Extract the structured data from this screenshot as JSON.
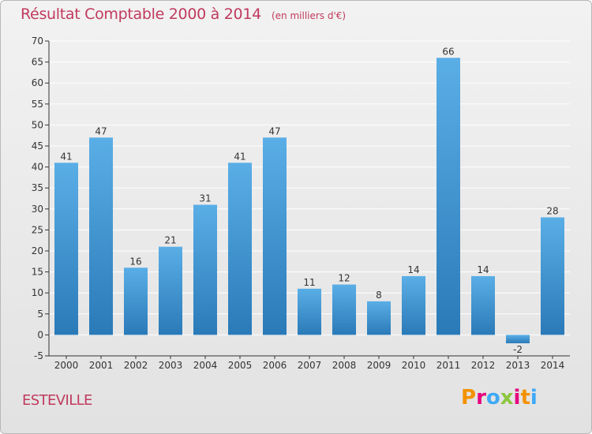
{
  "header": {
    "title": "Résultat Comptable 2000 à 2014",
    "subtitle": "(en milliers d'€)"
  },
  "footer": {
    "commune": "ESTEVILLE",
    "brand": "Proxiti",
    "brand_colors": [
      "#f39200",
      "#e6007e",
      "#3fa9f5",
      "#8cc63f",
      "#e6007e",
      "#f39200",
      "#3fa9f5"
    ]
  },
  "colors": {
    "title": "#c03a5e",
    "bar_light": "#5aaee6",
    "bar_dark": "#2a7ab8",
    "grid": "#ffffff",
    "axis": "#333333"
  },
  "chart_data": {
    "type": "bar",
    "categories": [
      "2000",
      "2001",
      "2002",
      "2003",
      "2004",
      "2005",
      "2006",
      "2007",
      "2008",
      "2009",
      "2010",
      "2011",
      "2012",
      "2013",
      "2014"
    ],
    "values": [
      41,
      47,
      16,
      21,
      31,
      41,
      47,
      11,
      12,
      8,
      14,
      66,
      14,
      -2,
      28
    ],
    "title": "Résultat Comptable 2000 à 2014",
    "subtitle": "(en milliers d'€)",
    "xlabel": "",
    "ylabel": "",
    "ylim": [
      -5,
      70
    ],
    "yticks": [
      -5,
      0,
      5,
      10,
      15,
      20,
      25,
      30,
      35,
      40,
      45,
      50,
      55,
      60,
      65,
      70
    ],
    "grid": true,
    "legend": "none"
  }
}
